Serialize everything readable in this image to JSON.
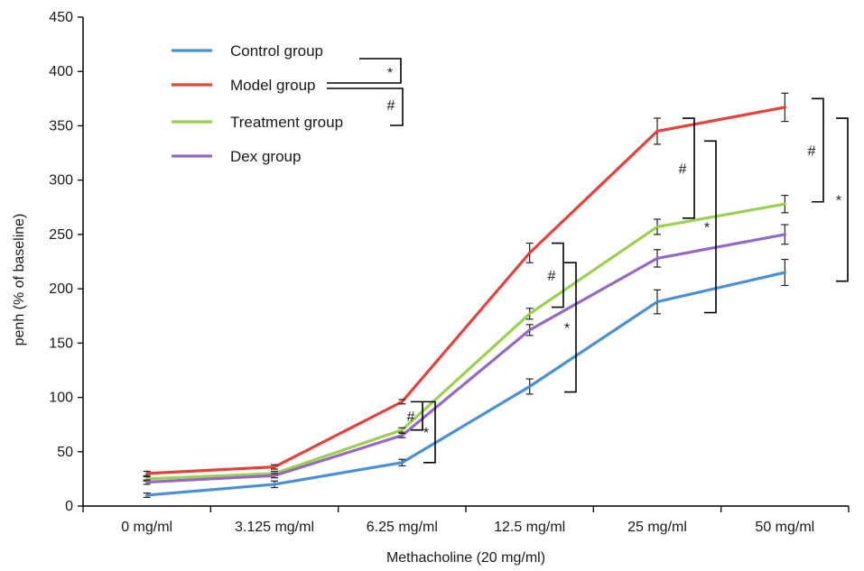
{
  "chart_data": {
    "type": "line",
    "xlabel": "Methacholine (20 mg/ml)",
    "ylabel": "penh (% of baseline)",
    "ylim": [
      0,
      450
    ],
    "yticks": [
      0,
      50,
      100,
      150,
      200,
      250,
      300,
      350,
      400,
      450
    ],
    "categories": [
      "0 mg/ml",
      "3.125 mg/ml",
      "6.25 mg/ml",
      "12.5 mg/ml",
      "25 mg/ml",
      "50 mg/ml"
    ],
    "grid": false,
    "legend_position": "top-left",
    "series": [
      {
        "name": "Control group",
        "color": "#4a90d9",
        "values": [
          10,
          20,
          40,
          110,
          188,
          215
        ],
        "errors": [
          2,
          3,
          3,
          7,
          11,
          12
        ]
      },
      {
        "name": "Model group",
        "color": "#e8413c",
        "values": [
          30,
          36,
          96,
          233,
          345,
          367
        ],
        "errors": [
          2,
          2,
          2,
          9,
          12,
          13
        ]
      },
      {
        "name": "Treatment group",
        "color": "#9bd14f",
        "values": [
          25,
          30,
          70,
          177,
          257,
          278
        ],
        "errors": [
          2,
          2,
          2,
          5,
          7,
          8
        ]
      },
      {
        "name": "Dex group",
        "color": "#9468c4",
        "values": [
          22,
          28,
          65,
          162,
          228,
          250
        ],
        "errors": [
          2,
          2,
          2,
          5,
          8,
          9
        ]
      }
    ],
    "legend_significance": {
      "model_vs_control": "*",
      "treatment_vs_model": "#"
    },
    "annotations": [
      {
        "label": "#",
        "category": "6.25 mg/ml",
        "range": [
          70,
          96
        ]
      },
      {
        "label": "*",
        "category": "6.25 mg/ml",
        "range": [
          40,
          96
        ]
      },
      {
        "label": "#",
        "category": "12.5 mg/ml",
        "range": [
          183,
          242
        ]
      },
      {
        "label": "*",
        "category": "12.5 mg/ml",
        "range": [
          105,
          224
        ]
      },
      {
        "label": "#",
        "category": "25 mg/ml",
        "range": [
          265,
          357
        ]
      },
      {
        "label": "*",
        "category": "25 mg/ml",
        "range": [
          178,
          336
        ]
      },
      {
        "label": "#",
        "category": "50 mg/ml",
        "range": [
          280,
          375
        ]
      },
      {
        "label": "*",
        "category": "50 mg/ml",
        "range": [
          207,
          357
        ]
      }
    ]
  }
}
